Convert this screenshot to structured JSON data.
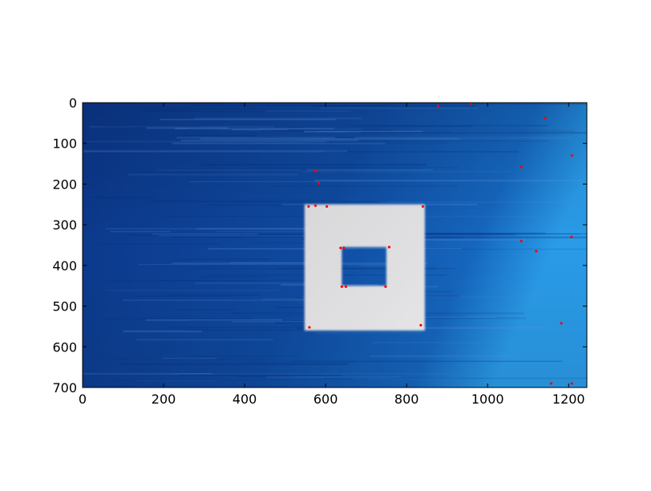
{
  "chart_data": {
    "type": "scatter",
    "title": "",
    "xlabel": "",
    "ylabel": "",
    "xlim": [
      0,
      1245
    ],
    "ylim": [
      700,
      0
    ],
    "y_inverted": true,
    "grid": false,
    "background": "image of a white square frame with a square hole on a blue surface",
    "x_ticks": [
      "0",
      "200",
      "400",
      "600",
      "800",
      "1000",
      "1200"
    ],
    "y_ticks": [
      "0",
      "100",
      "200",
      "300",
      "400",
      "500",
      "600",
      "700"
    ],
    "image_shapes": {
      "outer_square": {
        "x_min": 548,
        "x_max": 845,
        "y_min": 250,
        "y_max": 560
      },
      "inner_hole": {
        "x_min": 640,
        "x_max": 750,
        "y_min": 355,
        "y_max": 450
      }
    },
    "series": [
      {
        "marker_color": "#ff0000",
        "points": [
          [
            878,
            8
          ],
          [
            958,
            2
          ],
          [
            1142,
            38
          ],
          [
            1208,
            130
          ],
          [
            1083,
            158
          ],
          [
            575,
            168
          ],
          [
            583,
            198
          ],
          [
            558,
            255
          ],
          [
            575,
            253
          ],
          [
            603,
            255
          ],
          [
            840,
            255
          ],
          [
            1083,
            340
          ],
          [
            1207,
            330
          ],
          [
            1120,
            365
          ],
          [
            637,
            357
          ],
          [
            645,
            357
          ],
          [
            757,
            355
          ],
          [
            640,
            452
          ],
          [
            650,
            452
          ],
          [
            748,
            452
          ],
          [
            560,
            552
          ],
          [
            835,
            547
          ],
          [
            1182,
            542
          ],
          [
            1157,
            690
          ],
          [
            1208,
            690
          ]
        ]
      }
    ]
  },
  "colors": {
    "background_dark": "#0a3a8a",
    "background_light": "#1a8ae0",
    "frame": "#dcdcdc",
    "marker": "#ff0000"
  }
}
